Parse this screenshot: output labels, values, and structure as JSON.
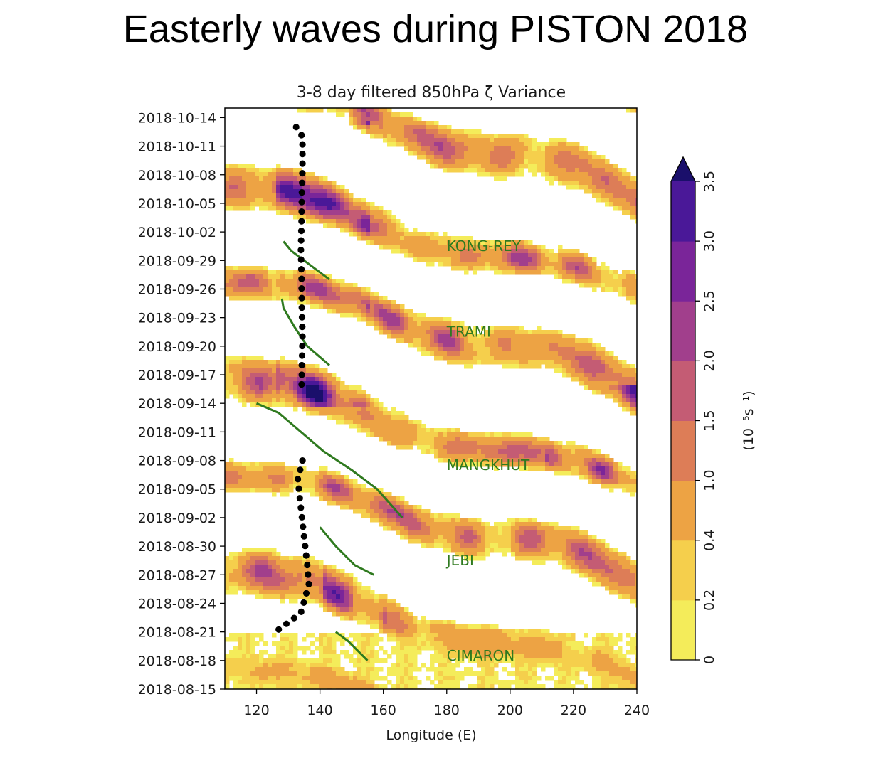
{
  "slide_title": "Easterly waves during PISTON 2018",
  "chart_data": {
    "type": "heatmap",
    "title": "3-8 day filtered 850hPa ζ Variance",
    "xlabel": "Longitude (E)",
    "xlim": [
      110,
      240
    ],
    "x_ticks": [
      120,
      140,
      160,
      180,
      200,
      220,
      240
    ],
    "ylim": [
      "2018-08-15",
      "2018-10-15"
    ],
    "y_ticks": [
      "2018-08-15",
      "2018-08-18",
      "2018-08-21",
      "2018-08-24",
      "2018-08-27",
      "2018-08-30",
      "2018-09-02",
      "2018-09-05",
      "2018-09-08",
      "2018-09-11",
      "2018-09-14",
      "2018-09-17",
      "2018-09-20",
      "2018-09-23",
      "2018-09-26",
      "2018-09-29",
      "2018-10-02",
      "2018-10-05",
      "2018-10-08",
      "2018-10-11",
      "2018-10-14"
    ],
    "colorbar": {
      "label": "(10⁻⁵s⁻¹)",
      "levels": [
        0,
        0.2,
        0.4,
        1.0,
        1.5,
        2.0,
        2.5,
        3.0,
        3.5
      ],
      "tick_labels": [
        "0",
        "0.2",
        "0.4",
        "1.0",
        "1.5",
        "2.0",
        "2.5",
        "3.0",
        "3.5"
      ],
      "colors": [
        "#f4ec5a",
        "#f5cf4c",
        "#eda344",
        "#dd7d57",
        "#c45c74",
        "#a13f8c",
        "#7a2599",
        "#4a1898"
      ],
      "extend": "max",
      "over_color": "#1a0f6b"
    },
    "storm_tracks": [
      {
        "label": "KONG-REY",
        "label_lon": 180,
        "label_date": "2018-09-30",
        "color": "#2f7a1f",
        "points": [
          [
            128.5,
            "2018-10-01"
          ],
          [
            131,
            "2018-09-30"
          ],
          [
            135,
            "2018-09-29"
          ],
          [
            139,
            "2018-09-28"
          ],
          [
            143,
            "2018-09-27"
          ]
        ]
      },
      {
        "label": "TRAMI",
        "label_lon": 180,
        "label_date": "2018-09-21",
        "color": "#2f7a1f",
        "points": [
          [
            128,
            "2018-09-25"
          ],
          [
            128.5,
            "2018-09-24"
          ],
          [
            132,
            "2018-09-22"
          ],
          [
            136,
            "2018-09-20"
          ],
          [
            143,
            "2018-09-18"
          ]
        ]
      },
      {
        "label": "MANGKHUT",
        "label_lon": 180,
        "label_date": "2018-09-07",
        "color": "#2f7a1f",
        "points": [
          [
            120,
            "2018-09-14"
          ],
          [
            127,
            "2018-09-13"
          ],
          [
            134,
            "2018-09-11"
          ],
          [
            141,
            "2018-09-09"
          ],
          [
            150,
            "2018-09-07"
          ],
          [
            158,
            "2018-09-05"
          ],
          [
            166,
            "2018-09-02"
          ]
        ]
      },
      {
        "label": "JEBI",
        "label_lon": 180,
        "label_date": "2018-08-28",
        "color": "#2f7a1f",
        "points": [
          [
            140,
            "2018-09-01"
          ],
          [
            145,
            "2018-08-30"
          ],
          [
            151,
            "2018-08-28"
          ],
          [
            157,
            "2018-08-27"
          ]
        ]
      },
      {
        "label": "CIMARON",
        "label_lon": 180,
        "label_date": "2018-08-18",
        "color": "#2f7a1f",
        "points": [
          [
            145,
            "2018-08-21"
          ],
          [
            149,
            "2018-08-20"
          ],
          [
            152,
            "2018-08-19"
          ],
          [
            155,
            "2018-08-18"
          ]
        ]
      }
    ],
    "dotted_tracks": [
      {
        "color": "#000000",
        "points": [
          [
            132.5,
            "2018-10-13"
          ],
          [
            134.5,
            "2018-10-12"
          ],
          [
            134.5,
            "2018-10-09"
          ],
          [
            134.3,
            "2018-10-06"
          ],
          [
            134.2,
            "2018-10-03"
          ],
          [
            134,
            "2018-09-30"
          ],
          [
            134.2,
            "2018-09-27"
          ],
          [
            134.3,
            "2018-09-24"
          ],
          [
            134.5,
            "2018-09-21"
          ],
          [
            134.3,
            "2018-09-18"
          ],
          [
            134.2,
            "2018-09-15"
          ]
        ]
      },
      {
        "color": "#000000",
        "points": [
          [
            134.5,
            "2018-09-08"
          ],
          [
            133,
            "2018-09-06"
          ],
          [
            134,
            "2018-09-03"
          ],
          [
            135,
            "2018-08-31"
          ],
          [
            136,
            "2018-08-28"
          ],
          [
            136.5,
            "2018-08-26"
          ],
          [
            134,
            "2018-08-23"
          ],
          [
            130,
            "2018-08-22"
          ],
          [
            126,
            "2018-08-21"
          ]
        ]
      }
    ]
  }
}
